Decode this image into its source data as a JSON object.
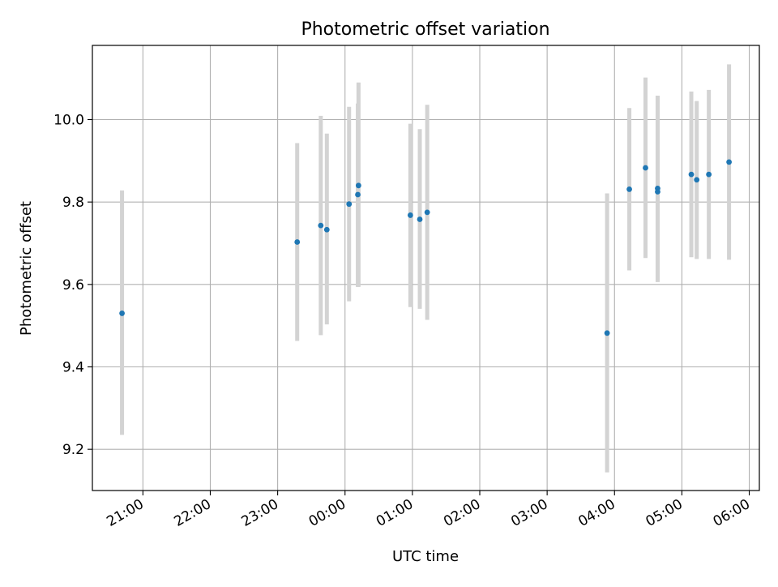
{
  "chart_data": {
    "type": "scatter",
    "title": "Photometric offset variation",
    "xlabel": "UTC time",
    "ylabel": "Photometric offset",
    "x_ticks": [
      "21:00",
      "22:00",
      "23:00",
      "00:00",
      "01:00",
      "02:00",
      "03:00",
      "04:00",
      "05:00",
      "06:00"
    ],
    "x_tick_hours": [
      21,
      22,
      23,
      24,
      25,
      26,
      27,
      28,
      29,
      30
    ],
    "xlim_hours": [
      20.25,
      30.15
    ],
    "y_ticks": [
      9.2,
      9.4,
      9.6,
      9.8,
      10.0
    ],
    "y_tick_labels": [
      "9.2",
      "9.4",
      "9.6",
      "9.8",
      "10.0"
    ],
    "ylim": [
      9.1,
      10.18
    ],
    "grid": true,
    "errorbars": true,
    "colors": {
      "point": "#1f77b4",
      "errorbar": "#d3d3d3",
      "grid": "#b0b0b0"
    },
    "points": [
      {
        "time": "20:42",
        "hours": 20.69,
        "y": 9.53,
        "low": 9.235,
        "high": 9.828
      },
      {
        "time": "23:17",
        "hours": 23.29,
        "y": 9.703,
        "low": 9.463,
        "high": 9.943
      },
      {
        "time": "23:39",
        "hours": 23.64,
        "y": 9.743,
        "low": 9.477,
        "high": 10.009
      },
      {
        "time": "23:44",
        "hours": 23.73,
        "y": 9.733,
        "low": 9.503,
        "high": 9.966
      },
      {
        "time": "00:04",
        "hours": 24.06,
        "y": 9.795,
        "low": 9.559,
        "high": 10.031
      },
      {
        "time": "00:11",
        "hours": 24.19,
        "y": 9.818,
        "low": 9.594,
        "high": 10.039
      },
      {
        "time": "00:12",
        "hours": 24.2,
        "y": 9.84,
        "low": 9.594,
        "high": 10.09
      },
      {
        "time": "00:58",
        "hours": 24.97,
        "y": 9.768,
        "low": 9.545,
        "high": 9.99
      },
      {
        "time": "01:06",
        "hours": 25.11,
        "y": 9.758,
        "low": 9.541,
        "high": 9.977
      },
      {
        "time": "01:13",
        "hours": 25.22,
        "y": 9.775,
        "low": 9.514,
        "high": 10.036
      },
      {
        "time": "03:53",
        "hours": 27.89,
        "y": 9.482,
        "low": 9.144,
        "high": 9.821
      },
      {
        "time": "04:13",
        "hours": 28.22,
        "y": 9.831,
        "low": 9.634,
        "high": 10.028
      },
      {
        "time": "04:28",
        "hours": 28.46,
        "y": 9.883,
        "low": 9.664,
        "high": 10.102
      },
      {
        "time": "04:38",
        "hours": 28.64,
        "y": 9.833,
        "low": 9.606,
        "high": 10.058
      },
      {
        "time": "04:38",
        "hours": 28.64,
        "y": 9.825,
        "low": 9.606,
        "high": 10.058
      },
      {
        "time": "05:09",
        "hours": 29.14,
        "y": 9.867,
        "low": 9.666,
        "high": 10.068
      },
      {
        "time": "05:13",
        "hours": 29.22,
        "y": 9.854,
        "low": 9.662,
        "high": 10.045
      },
      {
        "time": "05:24",
        "hours": 29.4,
        "y": 9.867,
        "low": 9.662,
        "high": 10.072
      },
      {
        "time": "05:42",
        "hours": 29.7,
        "y": 9.897,
        "low": 9.66,
        "high": 10.134
      }
    ]
  }
}
